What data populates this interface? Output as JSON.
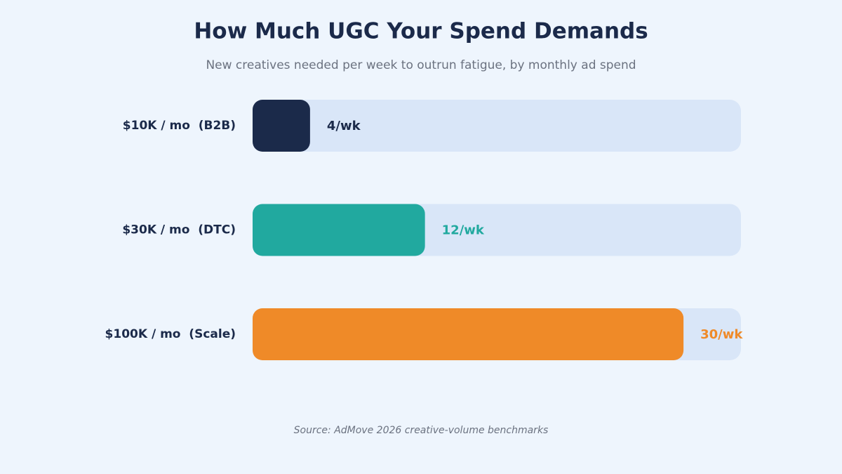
{
  "chart_data": {
    "type": "bar",
    "orientation": "horizontal",
    "title": "How Much UGC Your Spend Demands",
    "subtitle": "New creatives needed per week to outrun fatigue, by monthly ad spend",
    "source": "Source: AdMove 2026 creative-volume benchmarks",
    "categories": [
      "$10K / mo  (B2B)",
      "$30K / mo  (DTC)",
      "$100K / mo  (Scale)"
    ],
    "values": [
      4,
      12,
      30
    ],
    "value_labels": [
      "4/wk",
      "12/wk",
      "30/wk"
    ],
    "colors": [
      "#1b2a4a",
      "#21a99f",
      "#ef8a28"
    ],
    "xlim": [
      0,
      34
    ]
  }
}
